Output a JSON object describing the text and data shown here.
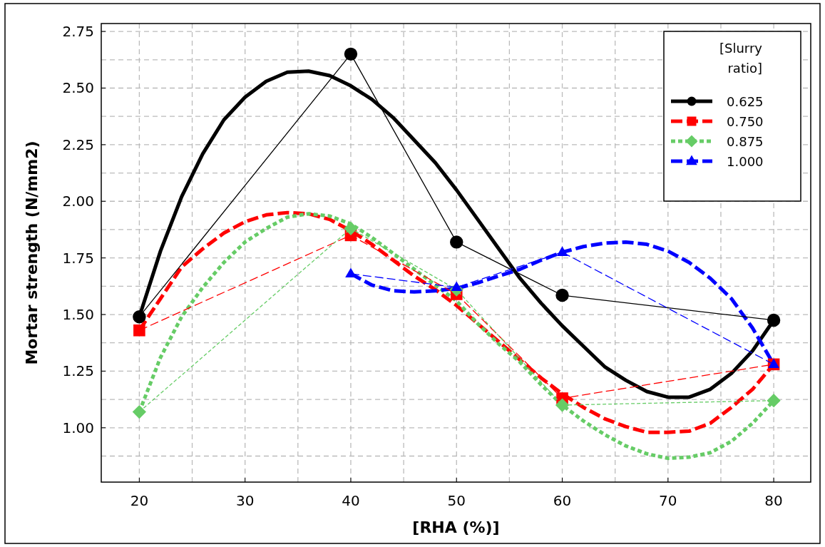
{
  "chart_data": {
    "type": "line",
    "xlabel": "[RHA (%)]",
    "ylabel": "Mortar strength (N/mm2)",
    "legend_title": "[Slurry ratio]",
    "xlim": [
      16.4,
      83.5
    ],
    "ylim": [
      0.76,
      2.785
    ],
    "xticks": [
      20,
      {
        "value": 25,
        "label": null
      },
      30,
      {
        "value": 35,
        "label": null
      },
      40,
      {
        "value": 45,
        "label": null
      },
      50,
      {
        "value": 55,
        "label": null
      },
      60,
      {
        "value": 65,
        "label": null
      },
      70,
      {
        "value": 75,
        "label": null
      },
      80
    ],
    "yticks": [
      {
        "value": 0.875,
        "label": null
      },
      "1.00",
      {
        "value": 1.125,
        "label": null
      },
      {
        "value": 1.25,
        "label": "1.25"
      },
      {
        "value": 1.375,
        "label": null
      },
      {
        "value": 1.5,
        "label": "1.50"
      },
      {
        "value": 1.625,
        "label": null
      },
      {
        "value": 1.75,
        "label": "1.75"
      },
      {
        "value": 1.875,
        "label": null
      },
      {
        "value": 2.0,
        "label": "2.00"
      },
      {
        "value": 2.125,
        "label": null
      },
      {
        "value": 2.25,
        "label": "2.25"
      },
      {
        "value": 2.375,
        "label": null
      },
      {
        "value": 2.5,
        "label": "2.50"
      },
      {
        "value": 2.625,
        "label": null
      },
      {
        "value": 2.75,
        "label": "2.75"
      }
    ],
    "grid": true,
    "legend": "top right",
    "series": [
      {
        "name": "0.625",
        "color": "#000000",
        "marker": "circle",
        "line_style": "solid",
        "x": [
          20,
          40,
          50,
          60,
          80
        ],
        "values": [
          1.49,
          2.65,
          1.82,
          1.585,
          1.475
        ]
      },
      {
        "name": "0.750",
        "color": "#ff0000",
        "marker": "square",
        "line_style": "dashed",
        "x": [
          20,
          40,
          50,
          60,
          80
        ],
        "values": [
          1.43,
          1.85,
          1.59,
          1.13,
          1.28
        ]
      },
      {
        "name": "0.875",
        "color": "#66cc66",
        "marker": "diamond",
        "line_style": "dotted",
        "x": [
          20,
          40,
          50,
          60,
          80
        ],
        "values": [
          1.07,
          1.88,
          1.61,
          1.1,
          1.12
        ]
      },
      {
        "name": "1.000",
        "color": "#0000ff",
        "marker": "triangle",
        "line_style": "dashed",
        "x": [
          40,
          50,
          60,
          80
        ],
        "values": [
          1.68,
          1.62,
          1.775,
          1.28
        ]
      },
      {
        "type": "line",
        "color": "#000000",
        "marker": "none",
        "line_style": "solid",
        "x": [
          20,
          22,
          24,
          26,
          28,
          30,
          32,
          34,
          36,
          38,
          40,
          42,
          44,
          46,
          48,
          50,
          52,
          54,
          56,
          58,
          60,
          62,
          64,
          66,
          68,
          70,
          72,
          74,
          76,
          78,
          80
        ],
        "values": [
          1.49,
          1.78,
          2.02,
          2.21,
          2.36,
          2.46,
          2.53,
          2.57,
          2.575,
          2.555,
          2.51,
          2.45,
          2.37,
          2.27,
          2.17,
          2.05,
          1.92,
          1.79,
          1.66,
          1.55,
          1.45,
          1.36,
          1.27,
          1.21,
          1.16,
          1.135,
          1.135,
          1.17,
          1.24,
          1.34,
          1.475
        ]
      },
      {
        "type": "line",
        "color": "#ff0000",
        "marker": "none",
        "line_style": "dashed",
        "x": [
          20,
          22,
          24,
          26,
          28,
          30,
          32,
          34,
          36,
          38,
          40,
          42,
          44,
          46,
          48,
          50,
          52,
          54,
          56,
          58,
          60,
          62,
          64,
          66,
          68,
          70,
          72,
          74,
          76,
          78,
          80
        ],
        "values": [
          1.43,
          1.57,
          1.71,
          1.79,
          1.86,
          1.91,
          1.94,
          1.95,
          1.945,
          1.92,
          1.87,
          1.81,
          1.74,
          1.67,
          1.61,
          1.54,
          1.46,
          1.38,
          1.3,
          1.22,
          1.15,
          1.09,
          1.04,
          1.005,
          0.98,
          0.98,
          0.985,
          1.02,
          1.09,
          1.17,
          1.28
        ]
      },
      {
        "type": "line",
        "color": "#66cc66",
        "marker": "none",
        "line_style": "dotted",
        "x": [
          20,
          22,
          24,
          26,
          28,
          30,
          32,
          34,
          36,
          38,
          40,
          42,
          44,
          46,
          48,
          50,
          52,
          54,
          56,
          58,
          60,
          62,
          64,
          66,
          68,
          70,
          72,
          74,
          76,
          78,
          80
        ],
        "values": [
          1.07,
          1.31,
          1.49,
          1.62,
          1.73,
          1.82,
          1.88,
          1.93,
          1.945,
          1.935,
          1.9,
          1.84,
          1.77,
          1.7,
          1.63,
          1.56,
          1.46,
          1.37,
          1.29,
          1.19,
          1.1,
          1.03,
          0.97,
          0.92,
          0.885,
          0.865,
          0.87,
          0.89,
          0.94,
          1.02,
          1.12
        ]
      },
      {
        "type": "line",
        "color": "#0000ff",
        "marker": "none",
        "line_style": "dashed",
        "x": [
          40,
          42,
          44,
          46,
          48,
          50,
          52,
          54,
          56,
          58,
          60,
          62,
          64,
          66,
          68,
          70,
          72,
          74,
          76,
          78,
          80
        ],
        "values": [
          1.68,
          1.63,
          1.605,
          1.6,
          1.605,
          1.615,
          1.64,
          1.67,
          1.7,
          1.74,
          1.775,
          1.8,
          1.815,
          1.82,
          1.81,
          1.78,
          1.73,
          1.66,
          1.57,
          1.44,
          1.28
        ]
      }
    ]
  }
}
